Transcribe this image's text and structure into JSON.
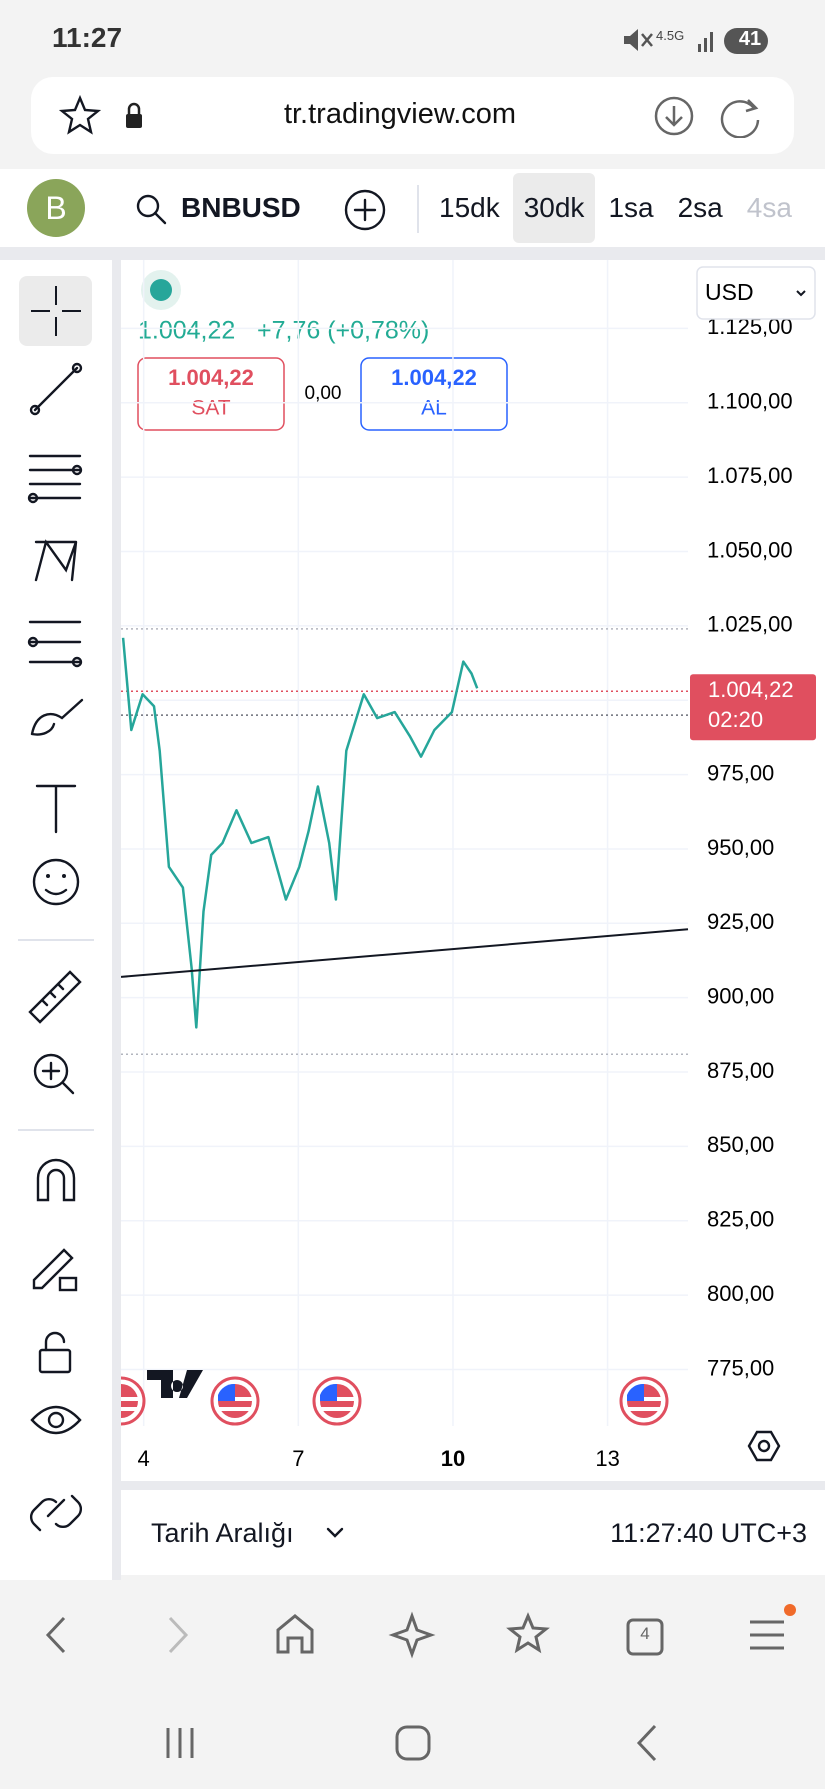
{
  "status_bar": {
    "time": "11:27",
    "network": "4.5G",
    "battery": "41"
  },
  "browser": {
    "url": "tr.tradingview.com"
  },
  "toolbar": {
    "avatar": "B",
    "symbol": "BNBUSD",
    "intervals": [
      "15dk",
      "30dk",
      "1sa",
      "2sa",
      "4sa"
    ],
    "active_interval_index": 1
  },
  "chart": {
    "currency": "USD",
    "last": "1.004,22",
    "change": "+7,76 (+0,78%)",
    "sell": {
      "price": "1.004,22",
      "label": "SAT"
    },
    "spread": "0,00",
    "buy": {
      "price": "1.004,22",
      "label": "AL"
    },
    "price_tag": {
      "price": "1.004,22",
      "countdown": "02:20"
    },
    "ylim": [
      756,
      1148
    ],
    "xlim": [
      3.56,
      14.56
    ],
    "yticks": [
      {
        "value": 1125,
        "label": "1.125,00"
      },
      {
        "value": 1100,
        "label": "1.100,00"
      },
      {
        "value": 1075,
        "label": "1.075,00"
      },
      {
        "value": 1050,
        "label": "1.050,00"
      },
      {
        "value": 1025,
        "label": "1.025,00"
      },
      {
        "value": 1000,
        "label": "1.000,00"
      },
      {
        "value": 975,
        "label": "975,00"
      },
      {
        "value": 950,
        "label": "950,00"
      },
      {
        "value": 925,
        "label": "925,00"
      },
      {
        "value": 900,
        "label": "900,00"
      },
      {
        "value": 875,
        "label": "875,00"
      },
      {
        "value": 850,
        "label": "850,00"
      },
      {
        "value": 825,
        "label": "825,00"
      },
      {
        "value": 800,
        "label": "800,00"
      },
      {
        "value": 775,
        "label": "775,00"
      }
    ],
    "xticks": [
      4,
      7,
      10,
      13
    ],
    "grid": true,
    "price_line": {
      "color": "#26a69a",
      "x": [
        3.6,
        3.76,
        3.98,
        4.2,
        4.31,
        4.49,
        4.76,
        4.93,
        5.02,
        5.16,
        5.31,
        5.53,
        5.8,
        6.09,
        6.42,
        6.76,
        7.02,
        7.2,
        7.38,
        7.6,
        7.73,
        7.93,
        8.27,
        8.53,
        8.87,
        9.16,
        9.38,
        9.64,
        9.98,
        10.2,
        10.36,
        10.47
      ],
      "y": [
        1021,
        990,
        1002,
        998,
        983,
        944,
        937,
        910,
        890,
        929,
        948,
        952,
        963,
        952,
        954,
        933,
        944,
        956,
        971,
        952,
        933,
        983,
        1002,
        994,
        996,
        988,
        981,
        990,
        996,
        1013,
        1009,
        1004
      ]
    },
    "trend_line": {
      "color": "#131722",
      "x": [
        3.56,
        14.56
      ],
      "y": [
        907,
        923
      ]
    },
    "levels": [
      1024,
      1003,
      995,
      881
    ]
  },
  "footer": {
    "range_label": "Tarih Aralığı",
    "clock": "11:27:40 UTC+3"
  },
  "nav": {
    "tabs_count": "4"
  }
}
